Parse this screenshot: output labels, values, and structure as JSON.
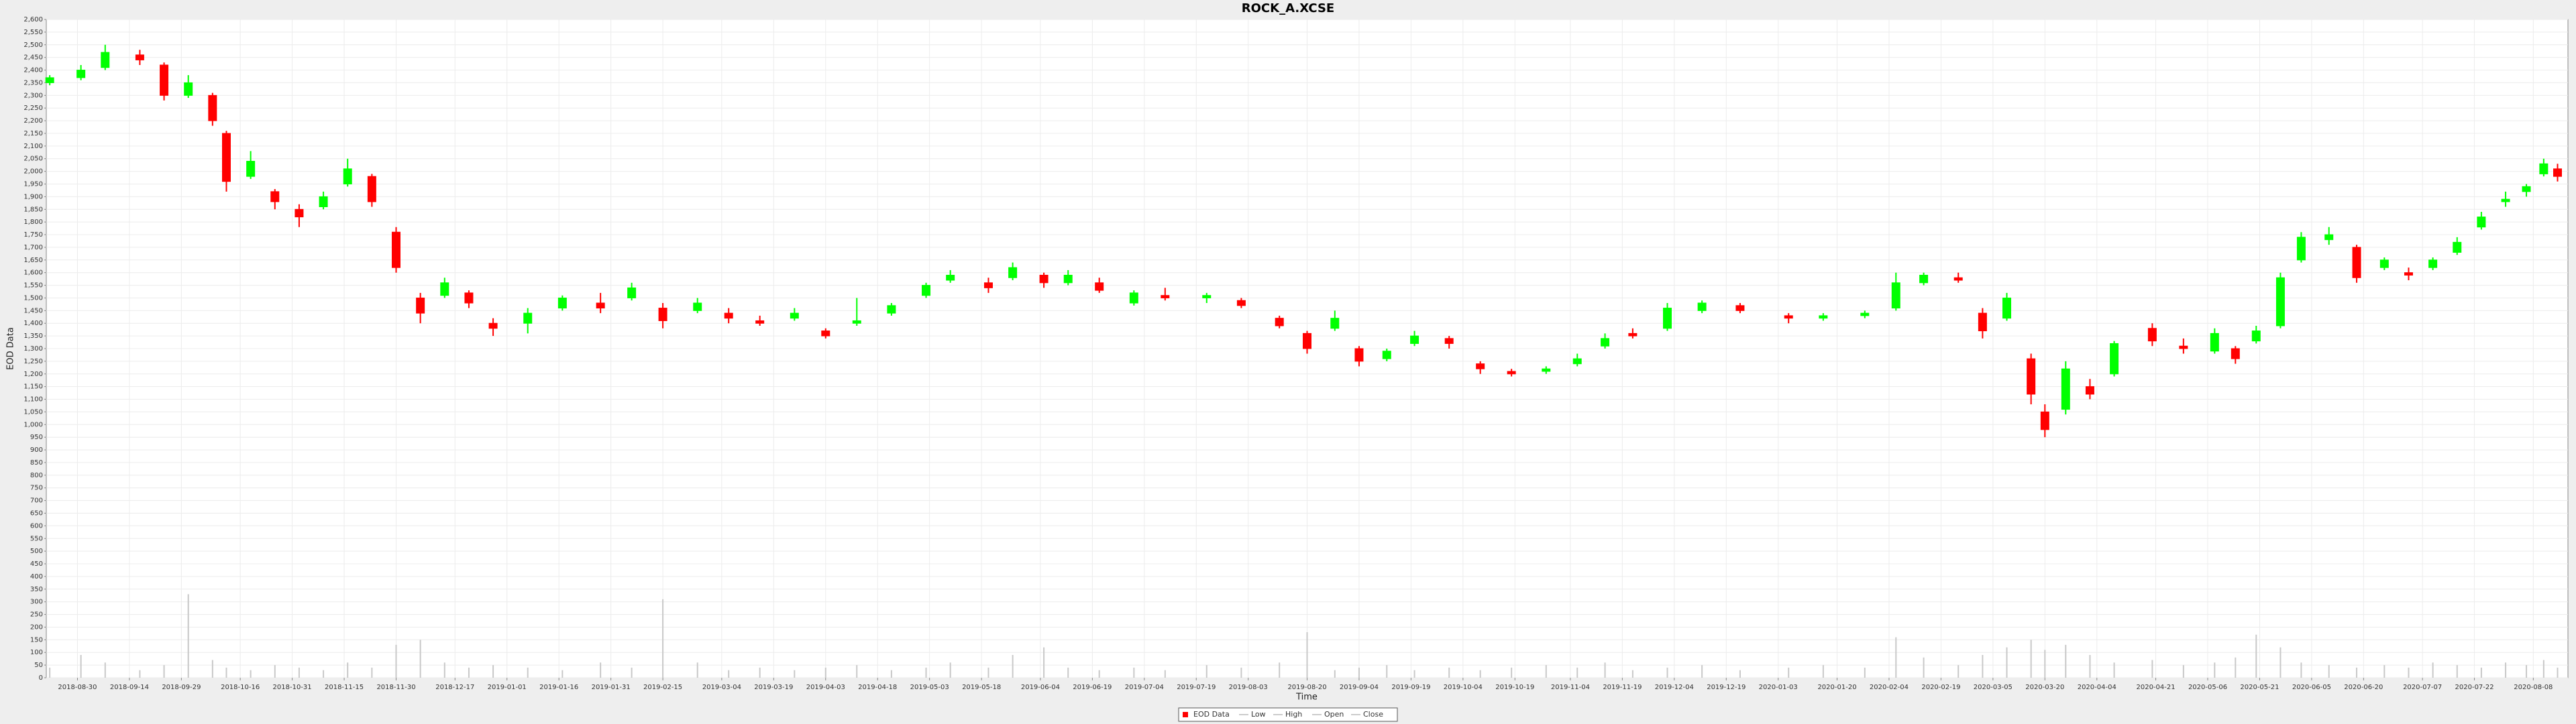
{
  "chart_data": {
    "type": "candlestick",
    "title": "ROCK_A.XCSE",
    "xlabel": "Time",
    "ylabel": "EOD Data",
    "x": [
      "2018-08-22",
      "2018-08-31",
      "2018-09-07",
      "2018-09-17",
      "2018-09-24",
      "2018-10-01",
      "2018-10-08",
      "2018-10-12",
      "2018-10-19",
      "2018-10-26",
      "2018-11-02",
      "2018-11-09",
      "2018-11-16",
      "2018-11-23",
      "2018-11-30",
      "2018-12-07",
      "2018-12-14",
      "2018-12-21",
      "2018-12-28",
      "2019-01-07",
      "2019-01-17",
      "2019-01-28",
      "2019-02-06",
      "2019-02-15",
      "2019-02-25",
      "2019-03-06",
      "2019-03-15",
      "2019-03-25",
      "2019-04-03",
      "2019-04-12",
      "2019-04-22",
      "2019-05-02",
      "2019-05-09",
      "2019-05-20",
      "2019-05-27",
      "2019-06-05",
      "2019-06-12",
      "2019-06-21",
      "2019-07-01",
      "2019-07-10",
      "2019-07-22",
      "2019-08-01",
      "2019-08-12",
      "2019-08-20",
      "2019-08-28",
      "2019-09-04",
      "2019-09-12",
      "2019-09-20",
      "2019-09-30",
      "2019-10-09",
      "2019-10-18",
      "2019-10-28",
      "2019-11-06",
      "2019-11-14",
      "2019-11-22",
      "2019-12-02",
      "2019-12-12",
      "2019-12-23",
      "2020-01-06",
      "2020-01-16",
      "2020-01-28",
      "2020-02-06",
      "2020-02-14",
      "2020-02-24",
      "2020-03-02",
      "2020-03-09",
      "2020-03-16",
      "2020-03-20",
      "2020-03-26",
      "2020-04-02",
      "2020-04-09",
      "2020-04-20",
      "2020-04-29",
      "2020-05-08",
      "2020-05-14",
      "2020-05-20",
      "2020-05-27",
      "2020-06-02",
      "2020-06-10",
      "2020-06-18",
      "2020-06-26",
      "2020-07-03",
      "2020-07-10",
      "2020-07-17",
      "2020-07-24",
      "2020-07-31",
      "2020-08-06",
      "2020-08-11",
      "2020-08-15"
    ],
    "open": [
      2350,
      2370,
      2410,
      2460,
      2420,
      2300,
      2300,
      2150,
      1980,
      1920,
      1850,
      1860,
      1950,
      1980,
      1760,
      1500,
      1510,
      1520,
      1400,
      1400,
      1460,
      1480,
      1500,
      1460,
      1450,
      1440,
      1410,
      1420,
      1370,
      1400,
      1440,
      1510,
      1570,
      1560,
      1580,
      1590,
      1560,
      1560,
      1480,
      1510,
      1500,
      1490,
      1420,
      1360,
      1380,
      1300,
      1260,
      1320,
      1340,
      1240,
      1210,
      1210,
      1240,
      1310,
      1360,
      1380,
      1450,
      1470,
      1430,
      1420,
      1430,
      1460,
      1560,
      1580,
      1440,
      1420,
      1260,
      1050,
      1060,
      1150,
      1200,
      1380,
      1310,
      1290,
      1300,
      1330,
      1390,
      1650,
      1730,
      1700,
      1620,
      1600,
      1620,
      1680,
      1780,
      1880,
      1920,
      1990,
      2010
    ],
    "high": [
      2380,
      2420,
      2500,
      2480,
      2430,
      2380,
      2310,
      2160,
      2080,
      1930,
      1870,
      1920,
      2050,
      1990,
      1780,
      1520,
      1580,
      1530,
      1420,
      1460,
      1510,
      1520,
      1560,
      1480,
      1500,
      1460,
      1430,
      1460,
      1380,
      1500,
      1480,
      1560,
      1610,
      1580,
      1640,
      1600,
      1610,
      1580,
      1530,
      1540,
      1520,
      1500,
      1430,
      1370,
      1450,
      1310,
      1300,
      1370,
      1350,
      1250,
      1220,
      1230,
      1280,
      1360,
      1380,
      1480,
      1490,
      1480,
      1440,
      1440,
      1450,
      1600,
      1600,
      1600,
      1460,
      1520,
      1280,
      1080,
      1250,
      1180,
      1330,
      1400,
      1340,
      1380,
      1310,
      1390,
      1600,
      1760,
      1780,
      1710,
      1660,
      1620,
      1660,
      1740,
      1840,
      1920,
      1950,
      2050,
      2030
    ],
    "low": [
      2340,
      2360,
      2400,
      2420,
      2280,
      2290,
      2180,
      1920,
      1970,
      1850,
      1780,
      1850,
      1940,
      1860,
      1600,
      1400,
      1500,
      1460,
      1350,
      1360,
      1450,
      1440,
      1490,
      1380,
      1440,
      1400,
      1390,
      1410,
      1340,
      1390,
      1430,
      1500,
      1560,
      1520,
      1570,
      1540,
      1550,
      1520,
      1470,
      1490,
      1480,
      1460,
      1380,
      1280,
      1370,
      1230,
      1250,
      1310,
      1300,
      1200,
      1190,
      1200,
      1230,
      1300,
      1340,
      1370,
      1440,
      1440,
      1400,
      1410,
      1420,
      1450,
      1550,
      1560,
      1340,
      1410,
      1080,
      950,
      1040,
      1100,
      1190,
      1310,
      1280,
      1280,
      1240,
      1320,
      1380,
      1640,
      1710,
      1560,
      1610,
      1570,
      1610,
      1670,
      1770,
      1860,
      1900,
      1980,
      1960
    ],
    "close": [
      2370,
      2400,
      2470,
      2440,
      2300,
      2350,
      2200,
      1960,
      2040,
      1880,
      1820,
      1900,
      2010,
      1880,
      1620,
      1440,
      1560,
      1480,
      1380,
      1440,
      1500,
      1460,
      1540,
      1410,
      1480,
      1420,
      1400,
      1440,
      1350,
      1410,
      1470,
      1550,
      1590,
      1540,
      1620,
      1560,
      1590,
      1530,
      1520,
      1500,
      1510,
      1470,
      1390,
      1300,
      1420,
      1250,
      1290,
      1350,
      1320,
      1220,
      1200,
      1220,
      1260,
      1340,
      1350,
      1460,
      1480,
      1450,
      1420,
      1430,
      1440,
      1560,
      1590,
      1570,
      1370,
      1500,
      1120,
      980,
      1220,
      1120,
      1320,
      1330,
      1300,
      1360,
      1260,
      1370,
      1580,
      1740,
      1750,
      1580,
      1650,
      1590,
      1650,
      1720,
      1820,
      1890,
      1940,
      2030,
      1980
    ],
    "volume": [
      40,
      90,
      60,
      30,
      50,
      330,
      70,
      40,
      30,
      50,
      40,
      30,
      60,
      40,
      130,
      150,
      60,
      40,
      50,
      40,
      30,
      60,
      40,
      310,
      60,
      30,
      40,
      30,
      40,
      50,
      30,
      40,
      60,
      40,
      90,
      120,
      40,
      30,
      40,
      30,
      50,
      40,
      60,
      180,
      30,
      40,
      50,
      30,
      40,
      30,
      40,
      50,
      40,
      60,
      30,
      40,
      50,
      30,
      40,
      50,
      40,
      160,
      80,
      50,
      90,
      120,
      150,
      110,
      130,
      90,
      60,
      70,
      50,
      60,
      80,
      170,
      120,
      60,
      50,
      40,
      50,
      40,
      60,
      50,
      40,
      60,
      50,
      70,
      40
    ],
    "up_color": "#00ff00",
    "down_color": "#ff0000",
    "volume_color": "#c8c8c8",
    "xlim": [
      "2018-08-21",
      "2020-08-18"
    ],
    "xticks": [
      "2018-08-30",
      "2018-09-14",
      "2018-09-29",
      "2018-10-16",
      "2018-10-31",
      "2018-11-15",
      "2018-11-30",
      "2018-12-17",
      "2019-01-01",
      "2019-01-16",
      "2019-01-31",
      "2019-02-15",
      "2019-03-04",
      "2019-03-19",
      "2019-04-03",
      "2019-04-18",
      "2019-05-03",
      "2019-05-18",
      "2019-06-04",
      "2019-06-19",
      "2019-07-04",
      "2019-07-19",
      "2019-08-03",
      "2019-08-20",
      "2019-09-04",
      "2019-09-19",
      "2019-10-04",
      "2019-10-19",
      "2019-11-04",
      "2019-11-19",
      "2019-12-04",
      "2019-12-19",
      "2020-01-03",
      "2020-01-20",
      "2020-02-04",
      "2020-02-19",
      "2020-03-05",
      "2020-03-20",
      "2020-04-04",
      "2020-04-21",
      "2020-05-06",
      "2020-05-21",
      "2020-06-05",
      "2020-06-20",
      "2020-07-07",
      "2020-07-22",
      "2020-08-08"
    ],
    "ylim": [
      0,
      2600
    ],
    "yticks": [
      0,
      50,
      100,
      150,
      200,
      250,
      300,
      350,
      400,
      450,
      500,
      550,
      600,
      650,
      700,
      750,
      800,
      850,
      900,
      950,
      {
        "value": 1000,
        "label": "1,000"
      },
      {
        "value": 1050,
        "label": "1,050"
      },
      {
        "value": 1100,
        "label": "1,100"
      },
      {
        "value": 1150,
        "label": "1,150"
      },
      {
        "value": 1200,
        "label": "1,200"
      },
      {
        "value": 1250,
        "label": "1,250"
      },
      {
        "value": 1300,
        "label": "1,300"
      },
      {
        "value": 1350,
        "label": "1,350"
      },
      {
        "value": 1400,
        "label": "1,400"
      },
      {
        "value": 1450,
        "label": "1,450"
      },
      {
        "value": 1500,
        "label": "1,500"
      },
      {
        "value": 1550,
        "label": "1,550"
      },
      {
        "value": 1600,
        "label": "1,600"
      },
      {
        "value": 1650,
        "label": "1,650"
      },
      {
        "value": 1700,
        "label": "1,700"
      },
      {
        "value": 1750,
        "label": "1,750"
      },
      {
        "value": 1800,
        "label": "1,800"
      },
      {
        "value": 1850,
        "label": "1,850"
      },
      {
        "value": 1900,
        "label": "1,900"
      },
      {
        "value": 1950,
        "label": "1,950"
      },
      {
        "value": 2000,
        "label": "2,000"
      },
      {
        "value": 2050,
        "label": "2,050"
      },
      {
        "value": 2100,
        "label": "2,100"
      },
      {
        "value": 2150,
        "label": "2,150"
      },
      {
        "value": 2200,
        "label": "2,200"
      },
      {
        "value": 2250,
        "label": "2,250"
      },
      {
        "value": 2300,
        "label": "2,300"
      },
      {
        "value": 2350,
        "label": "2,350"
      },
      {
        "value": 2400,
        "label": "2,400"
      },
      {
        "value": 2450,
        "label": "2,450"
      },
      {
        "value": 2500,
        "label": "2,500"
      },
      {
        "value": 2550,
        "label": "2,550"
      },
      {
        "value": 2600,
        "label": "2,600"
      }
    ],
    "grid": true,
    "legend": {
      "position": "bottom",
      "entries": [
        "EOD Data",
        "Low",
        "High",
        "Open",
        "Close"
      ]
    }
  }
}
